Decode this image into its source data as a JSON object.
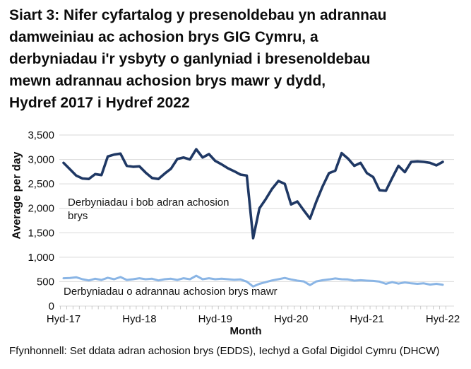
{
  "page": {
    "title": "Siart 3: Nifer cyfartalog y presenoldebau yn adrannau\ndamweiniau ac achosion brys GIG Cymru, a\nderbyniadau i'r ysbyty o ganlyniad i bresenoldebau\nmewn adrannau achosion brys mawr y dydd,\nHydref 2017 i Hydref 2022",
    "source": "Ffynhonnell: Set ddata adran achosion brys (EDDS), Iechyd a Gofal Digidol Cymru (DHCW)"
  },
  "chart_data": {
    "type": "line",
    "title": "Siart 3: Nifer cyfartalog y presenoldebau yn adrannau damweiniau ac achosion brys GIG Cymru, a derbyniadau i'r ysbyty o ganlyniad i bresenoldebau mewn adrannau achosion brys mawr y dydd, Hydref 2017 i Hydref 2022",
    "xlabel": "Month",
    "ylabel": "Average per day",
    "ylim": [
      0,
      3500
    ],
    "n_points": 61,
    "grid": true,
    "y_ticks": [
      {
        "value": 0,
        "label": "0"
      },
      {
        "value": 500,
        "label": "500"
      },
      {
        "value": 1000,
        "label": "1,000"
      },
      {
        "value": 1500,
        "label": "1,500"
      },
      {
        "value": 2000,
        "label": "2,000"
      },
      {
        "value": 2500,
        "label": "2,500"
      },
      {
        "value": 3000,
        "label": "3,000"
      },
      {
        "value": 3500,
        "label": "3,500"
      }
    ],
    "x_ticks": [
      {
        "index": 0,
        "label": "Hyd-17"
      },
      {
        "index": 12,
        "label": "Hyd-18"
      },
      {
        "index": 24,
        "label": "Hyd-19"
      },
      {
        "index": 36,
        "label": "Hyd-20"
      },
      {
        "index": 48,
        "label": "Hyd-21"
      },
      {
        "index": 60,
        "label": "Hyd-22"
      }
    ],
    "annotations": [
      {
        "text": "Derbyniadau i bob adran achosion brys",
        "series": "all-emergency-departments"
      },
      {
        "text": "Derbyniadau o adrannau achosion brys mawr",
        "series": "major-emergency-departments"
      }
    ],
    "style": {
      "gridline_color": "#d9d9d9",
      "tick_color": "#c9c9c9",
      "text_color": "#0d0d0d"
    },
    "series": [
      {
        "name": "Derbyniadau i bob adran achosion brys",
        "color": "#1f3864",
        "values": [
          2930,
          2800,
          2670,
          2610,
          2600,
          2700,
          2680,
          3060,
          3100,
          3120,
          2870,
          2850,
          2860,
          2730,
          2620,
          2600,
          2710,
          2810,
          3010,
          3040,
          3000,
          3210,
          3040,
          3110,
          2970,
          2900,
          2820,
          2760,
          2690,
          2670,
          1390,
          2000,
          2190,
          2400,
          2560,
          2500,
          2080,
          2140,
          1960,
          1790,
          2140,
          2450,
          2720,
          2770,
          3130,
          3020,
          2870,
          2930,
          2720,
          2640,
          2370,
          2360,
          2620,
          2870,
          2740,
          2950,
          2960,
          2950,
          2930,
          2880,
          2950
        ]
      },
      {
        "name": "Derbyniadau o adrannau achosion brys mawr",
        "color": "#8ab5e5",
        "values": [
          570,
          575,
          590,
          550,
          525,
          560,
          535,
          580,
          550,
          595,
          535,
          550,
          570,
          550,
          560,
          525,
          550,
          560,
          535,
          570,
          550,
          620,
          550,
          570,
          550,
          560,
          550,
          540,
          545,
          500,
          400,
          455,
          490,
          525,
          550,
          575,
          545,
          520,
          505,
          430,
          505,
          530,
          545,
          565,
          550,
          545,
          520,
          530,
          520,
          515,
          500,
          455,
          490,
          460,
          485,
          465,
          455,
          465,
          440,
          455,
          435
        ]
      }
    ]
  }
}
